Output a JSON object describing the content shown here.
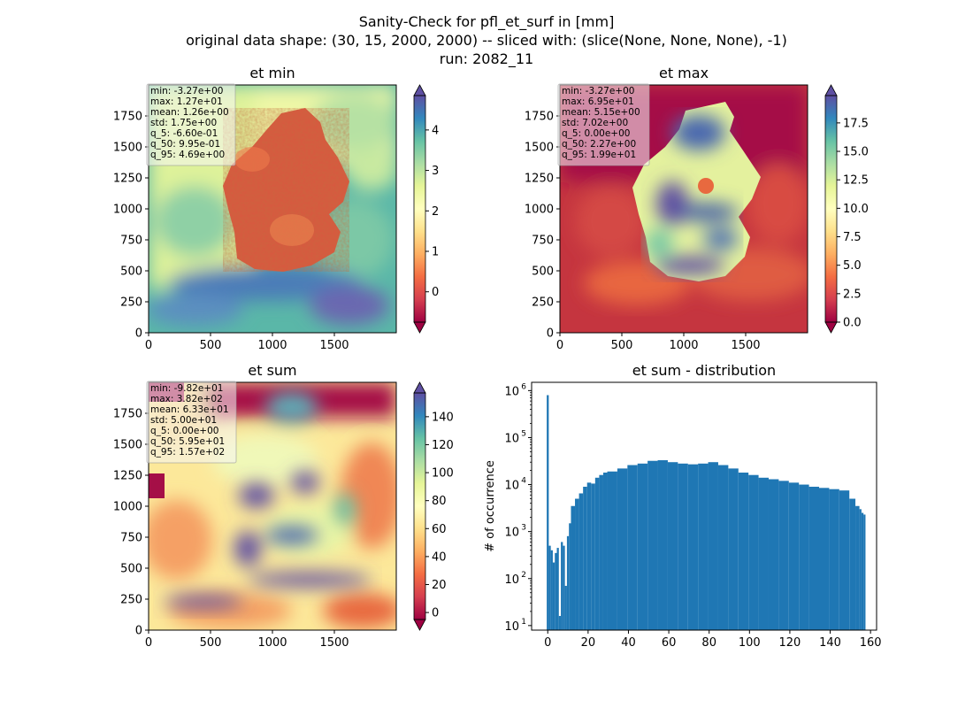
{
  "suptitle": {
    "line1": "Sanity-Check for pfl_et_surf in [mm]",
    "line2": "original data shape: (30, 15, 2000, 2000) -- sliced with: (slice(None, None, None), -1)",
    "line3": "run: 2082_11"
  },
  "colors": {
    "spectral": [
      "#9e0142",
      "#d53e4f",
      "#f46d43",
      "#fdae61",
      "#fee08b",
      "#ffffbf",
      "#e6f598",
      "#abdda4",
      "#66c2a5",
      "#3288bd",
      "#5e4fa2"
    ],
    "hist_bar": "#1f77b4",
    "nodata": "#ffffff"
  },
  "chart_data": [
    {
      "type": "heatmap",
      "title": "et min",
      "x_ticks": [
        "0",
        "500",
        "1000",
        "1500"
      ],
      "y_ticks": [
        "0",
        "250",
        "500",
        "750",
        "1000",
        "1250",
        "1500",
        "1750"
      ],
      "xlim": [
        0,
        2000
      ],
      "ylim": [
        0,
        2000
      ],
      "colorbar": {
        "range": [
          -0.75,
          4.85
        ],
        "ticks": [
          "0",
          "1",
          "2",
          "3",
          "4"
        ],
        "tick_values": [
          0,
          1,
          2,
          3,
          4
        ],
        "cmap": "Spectral",
        "extend": "both"
      },
      "stats": [
        "min: -3.27e+00",
        "max: 1.27e+01",
        "mean: 1.26e+00",
        "std: 1.75e+00",
        "q_5: -6.60e-01",
        "q_50: 9.95e-01",
        "q_95: 4.69e+00"
      ]
    },
    {
      "type": "heatmap",
      "title": "et max",
      "x_ticks": [
        "0",
        "500",
        "1000",
        "1500"
      ],
      "y_ticks": [
        "0",
        "250",
        "500",
        "750",
        "1000",
        "1250",
        "1500",
        "1750"
      ],
      "xlim": [
        0,
        2000
      ],
      "ylim": [
        0,
        2000
      ],
      "colorbar": {
        "range": [
          0,
          19.9
        ],
        "ticks": [
          "0.0",
          "2.5",
          "5.0",
          "7.5",
          "10.0",
          "12.5",
          "15.0",
          "17.5"
        ],
        "tick_values": [
          0,
          2.5,
          5,
          7.5,
          10,
          12.5,
          15,
          17.5
        ],
        "cmap": "Spectral",
        "extend": "both"
      },
      "stats": [
        "min: -3.27e+00",
        "max: 6.95e+01",
        "mean: 5.15e+00",
        "std: 7.02e+00",
        "q_5: 0.00e+00",
        "q_50: 2.27e+00",
        "q_95: 1.99e+01"
      ]
    },
    {
      "type": "heatmap",
      "title": "et sum",
      "x_ticks": [
        "0",
        "500",
        "1000",
        "1500"
      ],
      "y_ticks": [
        "0",
        "250",
        "500",
        "750",
        "1000",
        "1250",
        "1500",
        "1750"
      ],
      "xlim": [
        0,
        2000
      ],
      "ylim": [
        0,
        2000
      ],
      "colorbar": {
        "range": [
          -5,
          157
        ],
        "ticks": [
          "0",
          "20",
          "40",
          "60",
          "80",
          "100",
          "120",
          "140"
        ],
        "tick_values": [
          0,
          20,
          40,
          60,
          80,
          100,
          120,
          140
        ],
        "cmap": "Spectral",
        "extend": "both"
      },
      "stats": [
        "min: -9.82e+01",
        "max: 3.82e+02",
        "mean: 6.33e+01",
        "std: 5.00e+01",
        "q_5: 0.00e+00",
        "q_50: 5.95e+01",
        "q_95: 1.57e+02"
      ]
    },
    {
      "type": "bar",
      "title": "et sum - distribution",
      "ylabel": "# of occurrence",
      "xlabel": "",
      "xlim": [
        -8,
        163
      ],
      "yscale": "log",
      "ylim": [
        8,
        1500000
      ],
      "x_ticks": [
        "0",
        "20",
        "40",
        "60",
        "80",
        "100",
        "120",
        "140",
        "160"
      ],
      "x_tick_values": [
        0,
        20,
        40,
        60,
        80,
        100,
        120,
        140,
        160
      ],
      "y_ticks": [
        {
          "base": "10",
          "exp": "1",
          "value": 10
        },
        {
          "base": "10",
          "exp": "2",
          "value": 100
        },
        {
          "base": "10",
          "exp": "3",
          "value": 1000
        },
        {
          "base": "10",
          "exp": "4",
          "value": 10000
        },
        {
          "base": "10",
          "exp": "5",
          "value": 100000
        },
        {
          "base": "10",
          "exp": "6",
          "value": 1000000
        }
      ],
      "bins": [
        {
          "x": 0,
          "count": 800000
        },
        {
          "x": 1,
          "count": 500
        },
        {
          "x": 2,
          "count": 400
        },
        {
          "x": 3,
          "count": 220
        },
        {
          "x": 4,
          "count": 350
        },
        {
          "x": 5,
          "count": 450
        },
        {
          "x": 6,
          "count": 16
        },
        {
          "x": 7,
          "count": 600
        },
        {
          "x": 8,
          "count": 500
        },
        {
          "x": 9,
          "count": 70
        },
        {
          "x": 10,
          "count": 800
        },
        {
          "x": 11,
          "count": 1500
        },
        {
          "x": 12,
          "count": 3500
        },
        {
          "x": 14,
          "count": 5000
        },
        {
          "x": 16,
          "count": 6500
        },
        {
          "x": 18,
          "count": 9000
        },
        {
          "x": 20,
          "count": 11000
        },
        {
          "x": 22,
          "count": 10500
        },
        {
          "x": 24,
          "count": 14000
        },
        {
          "x": 26,
          "count": 16000
        },
        {
          "x": 28,
          "count": 18000
        },
        {
          "x": 30,
          "count": 19000
        },
        {
          "x": 35,
          "count": 22000
        },
        {
          "x": 40,
          "count": 26000
        },
        {
          "x": 45,
          "count": 28000
        },
        {
          "x": 50,
          "count": 32000
        },
        {
          "x": 55,
          "count": 33000
        },
        {
          "x": 60,
          "count": 30000
        },
        {
          "x": 65,
          "count": 28000
        },
        {
          "x": 70,
          "count": 27000
        },
        {
          "x": 75,
          "count": 28000
        },
        {
          "x": 80,
          "count": 30000
        },
        {
          "x": 85,
          "count": 26000
        },
        {
          "x": 90,
          "count": 22000
        },
        {
          "x": 95,
          "count": 18000
        },
        {
          "x": 100,
          "count": 16000
        },
        {
          "x": 105,
          "count": 14000
        },
        {
          "x": 110,
          "count": 13000
        },
        {
          "x": 115,
          "count": 12000
        },
        {
          "x": 120,
          "count": 11000
        },
        {
          "x": 125,
          "count": 10000
        },
        {
          "x": 130,
          "count": 9000
        },
        {
          "x": 135,
          "count": 8500
        },
        {
          "x": 140,
          "count": 8000
        },
        {
          "x": 145,
          "count": 7500
        },
        {
          "x": 150,
          "count": 5000
        },
        {
          "x": 153,
          "count": 3500
        },
        {
          "x": 155,
          "count": 3000
        },
        {
          "x": 156,
          "count": 2500
        },
        {
          "x": 157,
          "count": 2300
        }
      ]
    }
  ]
}
